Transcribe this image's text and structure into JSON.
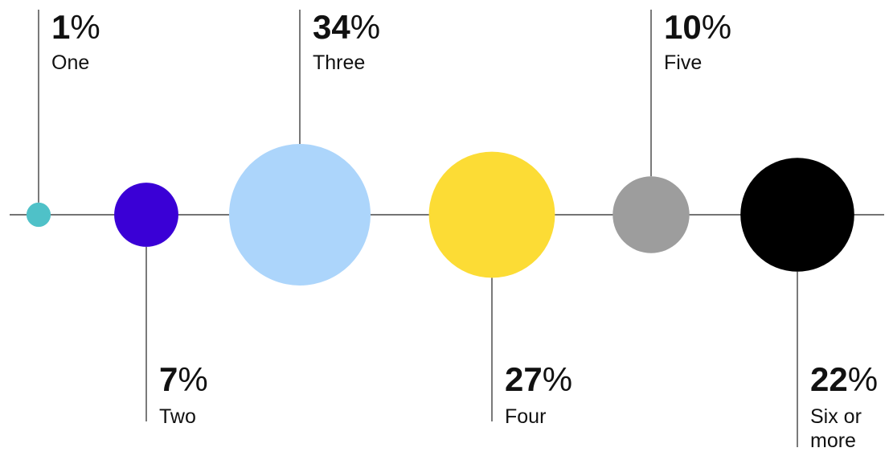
{
  "chart_data": {
    "type": "bubble",
    "title": "",
    "categories": [
      "One",
      "Two",
      "Three",
      "Four",
      "Five",
      "Six or more"
    ],
    "category_lines": [
      [
        "One"
      ],
      [
        "Two"
      ],
      [
        "Three"
      ],
      [
        "Four"
      ],
      [
        "Five"
      ],
      [
        "Six or",
        "more"
      ]
    ],
    "values": [
      1,
      7,
      34,
      27,
      10,
      22
    ],
    "value_labels": [
      "1",
      "7",
      "34",
      "27",
      "10",
      "22"
    ],
    "unit": "%",
    "colors": [
      "#4fc1c8",
      "#3a00d6",
      "#acd5fb",
      "#fcdc35",
      "#9d9d9d",
      "#000000"
    ],
    "label_positions": [
      "top",
      "bottom",
      "top",
      "bottom",
      "top",
      "bottom"
    ],
    "grid": false,
    "legend": "none"
  }
}
